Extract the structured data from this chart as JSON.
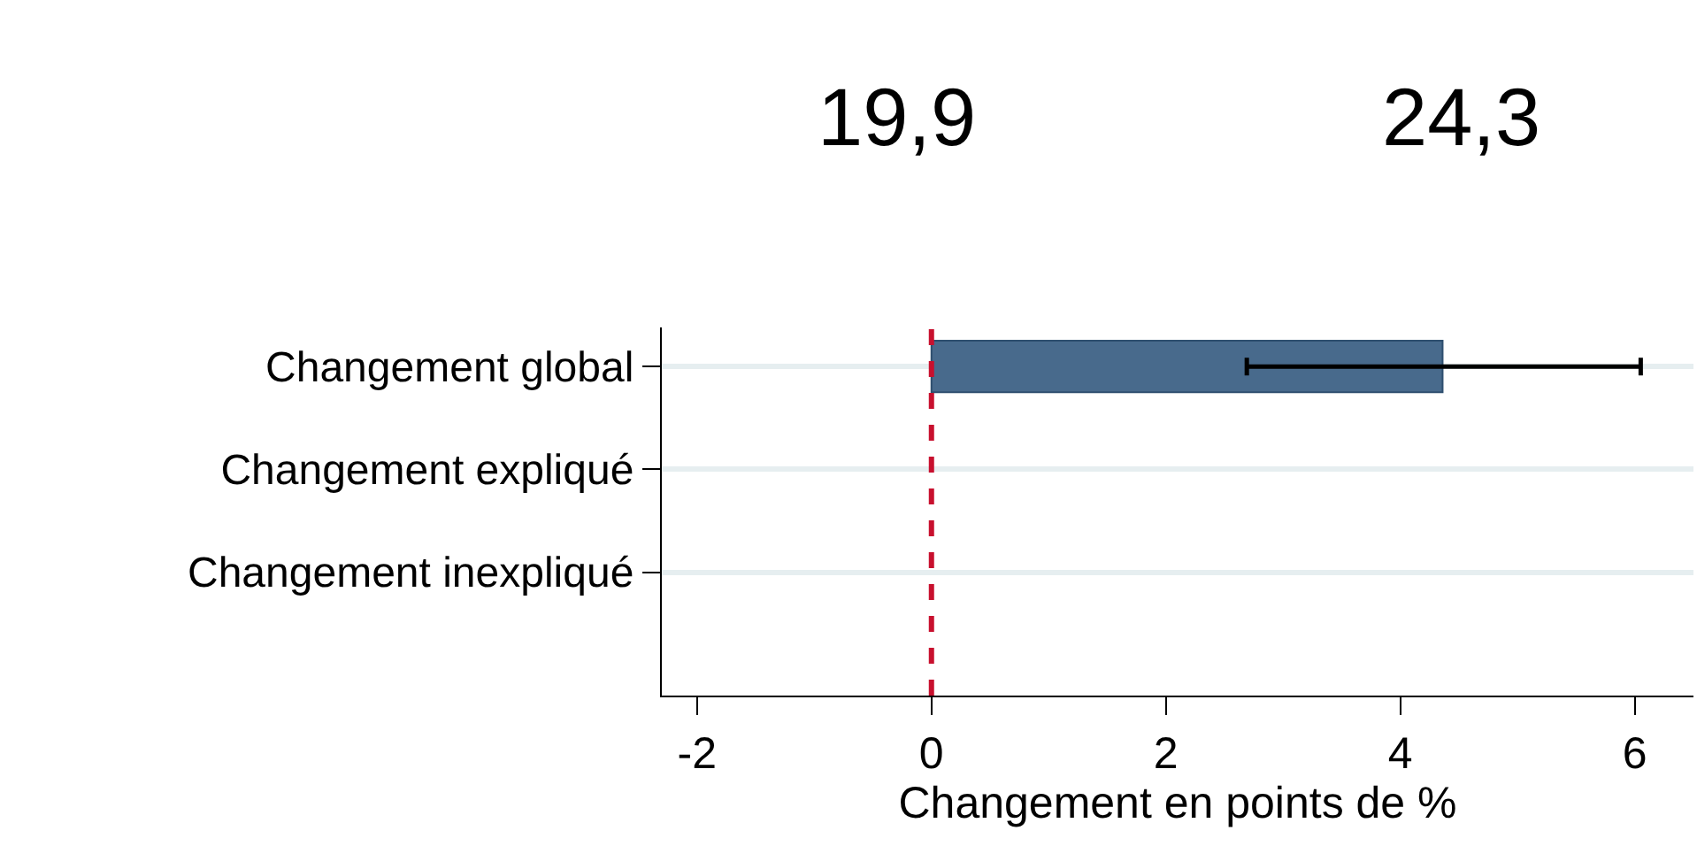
{
  "chart_data": {
    "type": "bar",
    "orientation": "horizontal",
    "categories": [
      "Changement global",
      "Changement expliqué",
      "Changement inexpliqué"
    ],
    "values": [
      4.36,
      null,
      null
    ],
    "color": "#486a8c",
    "errors": [
      [
        2.69,
        6.05
      ],
      null,
      null
    ],
    "xlabel": "Changement en points de %",
    "xlim": [
      -2.3,
      6.5
    ],
    "xticks": [
      -2,
      0,
      2,
      4,
      6
    ],
    "grid": "y",
    "ref_lines": [
      {
        "axis": "x",
        "value": 0,
        "color": "#c8102e",
        "line_style": "dashed"
      }
    ],
    "annotations": [
      "19,9",
      "24,3"
    ]
  }
}
